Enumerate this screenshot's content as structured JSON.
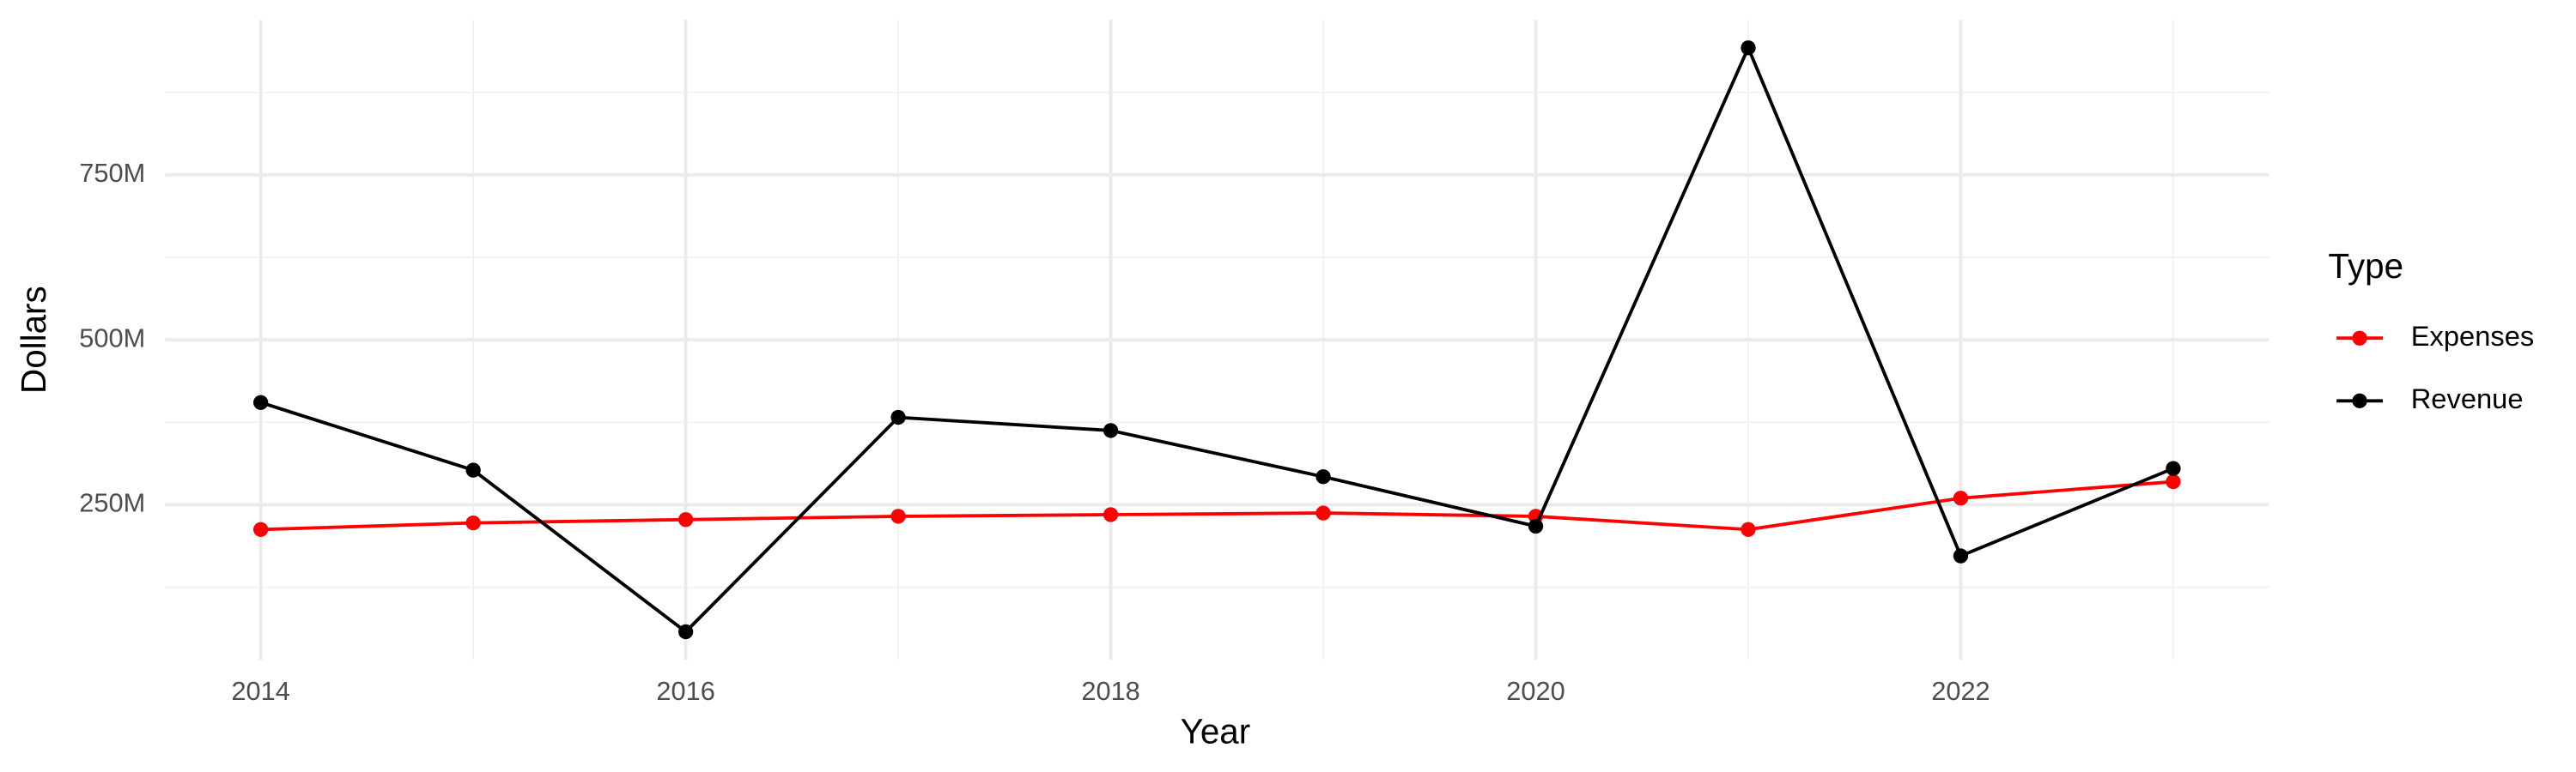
{
  "chart_data": {
    "type": "line",
    "x_label": "Year",
    "y_label": "Dollars",
    "legend_title": "Type",
    "legend_position": "right",
    "x": [
      2014,
      2015,
      2016,
      2017,
      2018,
      2019,
      2020,
      2021,
      2022,
      2023
    ],
    "series": [
      {
        "name": "Expenses",
        "color": "#ff0000",
        "values": [
          212500000,
          222500000,
          227500000,
          232500000,
          235000000,
          237500000,
          232500000,
          212500000,
          260000000,
          285000000
        ]
      },
      {
        "name": "Revenue",
        "color": "#000000",
        "values": [
          405000000,
          302500000,
          57500000,
          382500000,
          362500000,
          292500000,
          217500000,
          942500000,
          172500000,
          305000000
        ]
      }
    ],
    "xlim": [
      2013.55,
      2023.45
    ],
    "xticks": [
      2014,
      2016,
      2018,
      2020,
      2022
    ],
    "ylim": [
      15000000,
      985000000
    ],
    "yticks": [
      {
        "value": 250000000,
        "label": "250M"
      },
      {
        "value": 500000000,
        "label": "500M"
      },
      {
        "value": 750000000,
        "label": "750M"
      }
    ],
    "grid": true
  }
}
